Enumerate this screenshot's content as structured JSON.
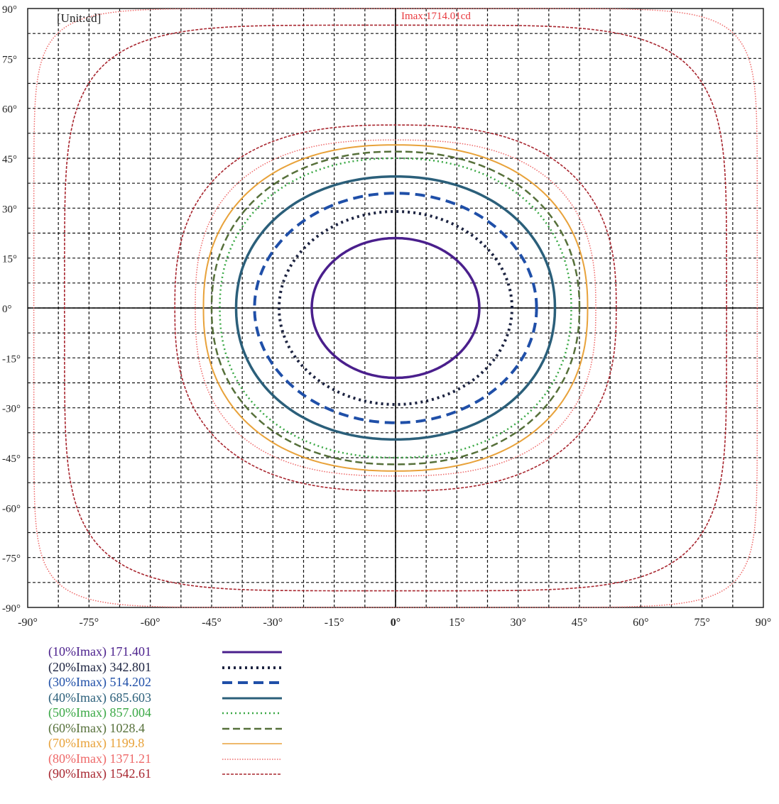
{
  "chart_data": {
    "type": "line",
    "subtype": "isocandela-contour",
    "units_label": "[Unit:cd]",
    "imax_label": "Imax:1714.01cd",
    "imax": 1714.01,
    "xlim": [
      -90,
      90
    ],
    "ylim": [
      -90,
      90
    ],
    "grid": true,
    "x_ticks": [
      "-90°",
      "-75°",
      "-60°",
      "-45°",
      "-30°",
      "-15°",
      "0°",
      "15°",
      "30°",
      "45°",
      "60°",
      "75°",
      "90°"
    ],
    "y_ticks": [
      "90°",
      "75°",
      "60°",
      "45°",
      "30°",
      "15°",
      "0°",
      "-15°",
      "-30°",
      "-45°",
      "-60°",
      "-75°",
      "-90°"
    ],
    "series": [
      {
        "name": "(10%Imax) 171.401",
        "percent": 10,
        "value": 171.401,
        "color": "#4a1f8c",
        "style": "solid",
        "semi_x": 20.5,
        "semi_y": 21,
        "shape": 2
      },
      {
        "name": "(20%Imax) 342.801",
        "percent": 20,
        "value": 342.801,
        "color": "#1c2340",
        "style": "dotted-bold",
        "semi_x": 28.5,
        "semi_y": 29,
        "shape": 2
      },
      {
        "name": "(30%Imax) 514.202",
        "percent": 30,
        "value": 514.202,
        "color": "#1f4fa8",
        "style": "dashed-bold",
        "semi_x": 34.5,
        "semi_y": 34.5,
        "shape": 2
      },
      {
        "name": "(40%Imax) 685.603",
        "percent": 40,
        "value": 685.603,
        "color": "#2b5f7a",
        "style": "solid",
        "semi_x": 39,
        "semi_y": 39.5,
        "shape": 2.1
      },
      {
        "name": "(50%Imax) 857.004",
        "percent": 50,
        "value": 857.004,
        "color": "#3aa845",
        "style": "dotted",
        "semi_x": 43,
        "semi_y": 45,
        "shape": 2.2
      },
      {
        "name": "(60%Imax) 1028.4",
        "percent": 60,
        "value": 1028.4,
        "color": "#56703a",
        "style": "dashed",
        "semi_x": 45,
        "semi_y": 47,
        "shape": 2.2
      },
      {
        "name": "(70%Imax) 1199.8",
        "percent": 70,
        "value": 1199.8,
        "color": "#e8a23a",
        "style": "solid-thin",
        "semi_x": 47,
        "semi_y": 49,
        "shape": 2.3
      },
      {
        "name": "(80%Imax) 1371.21",
        "percent": 80,
        "value": 1371.21,
        "color": "#ee6868",
        "style": "dotted-thin",
        "semi_x": 49,
        "semi_y": 50.5,
        "shape": 2.6
      },
      {
        "name": "(90%Imax) 1542.61",
        "percent": 90,
        "value": 1542.61,
        "color": "#a8262f",
        "style": "dashed-thin",
        "semi_x": 54,
        "semi_y": 55,
        "shape": 2.6
      }
    ],
    "outer_contours": [
      {
        "color": "#a8262f",
        "style": "dashed-thin",
        "semi_x": 81,
        "semi_y": 85,
        "shape": 5
      },
      {
        "color": "#ee6868",
        "style": "dotted-thin",
        "semi_x": 88.5,
        "semi_y": 90,
        "shape": 9
      }
    ]
  }
}
